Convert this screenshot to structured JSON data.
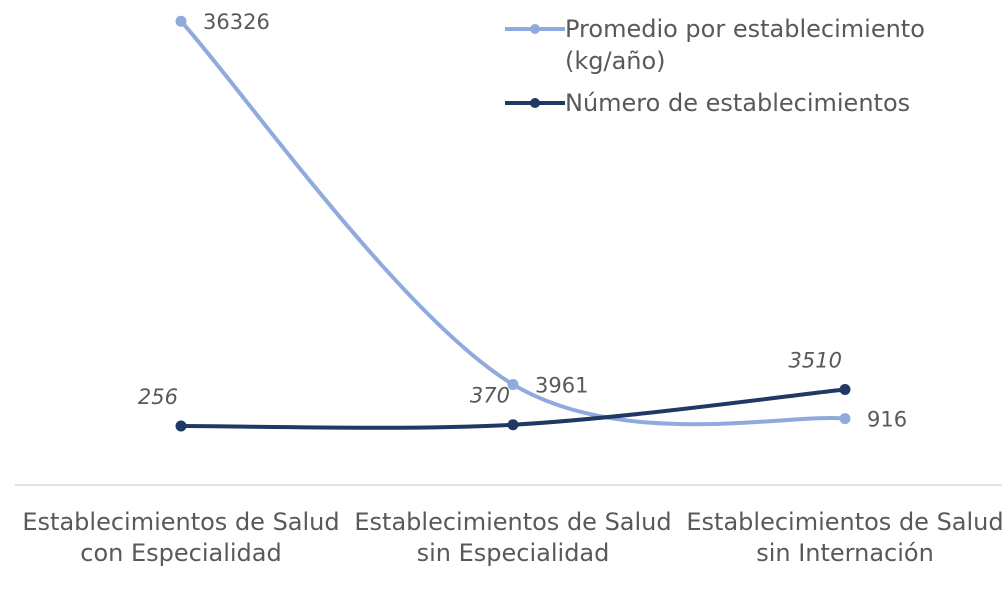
{
  "chart_data": {
    "type": "line",
    "categories": [
      "Establecimientos de Salud con Especialidad",
      "Establecimientos de Salud sin Especialidad",
      "Establecimientos de Salud sin Internación"
    ],
    "series": [
      {
        "name": "Promedio por establecimiento (kg/año)",
        "color": "#8faadc",
        "values": [
          36326,
          3961,
          916
        ]
      },
      {
        "name": "Número de establecimientos",
        "color": "#203864",
        "values": [
          256,
          370,
          3510
        ]
      }
    ],
    "ylim": [
      -5000,
      40000
    ],
    "smooth": true,
    "legend": "top-right"
  }
}
